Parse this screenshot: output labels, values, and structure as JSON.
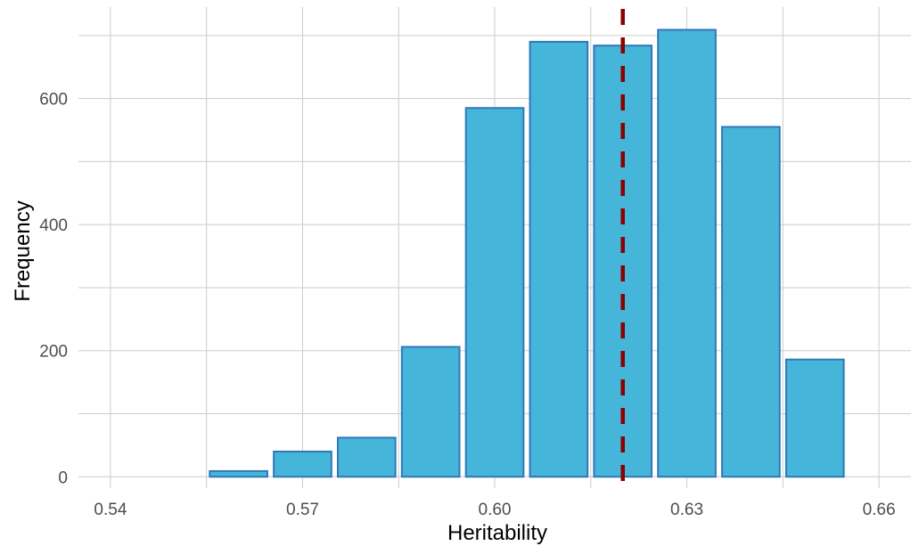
{
  "chart_data": {
    "type": "bar",
    "title": "",
    "xlabel": "Heritability",
    "ylabel": "Frequency",
    "xlim": [
      0.535,
      0.665
    ],
    "ylim": [
      -18,
      745
    ],
    "grid": true,
    "x_ticks": [
      0.54,
      0.57,
      0.6,
      0.63,
      0.66
    ],
    "x_tick_labels": [
      "0.54",
      "0.57",
      "0.60",
      "0.63",
      "0.66"
    ],
    "y_ticks": [
      0,
      200,
      400,
      600
    ],
    "y_tick_labels": [
      "0",
      "200",
      "400",
      "600"
    ],
    "bin_width": 0.01,
    "bins": [
      {
        "x": 0.56,
        "value": 9
      },
      {
        "x": 0.57,
        "value": 40
      },
      {
        "x": 0.58,
        "value": 62
      },
      {
        "x": 0.59,
        "value": 206
      },
      {
        "x": 0.6,
        "value": 585
      },
      {
        "x": 0.61,
        "value": 690
      },
      {
        "x": 0.62,
        "value": 684
      },
      {
        "x": 0.63,
        "value": 709
      },
      {
        "x": 0.64,
        "value": 555
      },
      {
        "x": 0.65,
        "value": 186
      }
    ],
    "reference_line": {
      "x": 0.62,
      "style": "dashed",
      "color": "#8b0000"
    },
    "bar_fill": "#45b5da",
    "bar_stroke": "#2f78b7"
  }
}
